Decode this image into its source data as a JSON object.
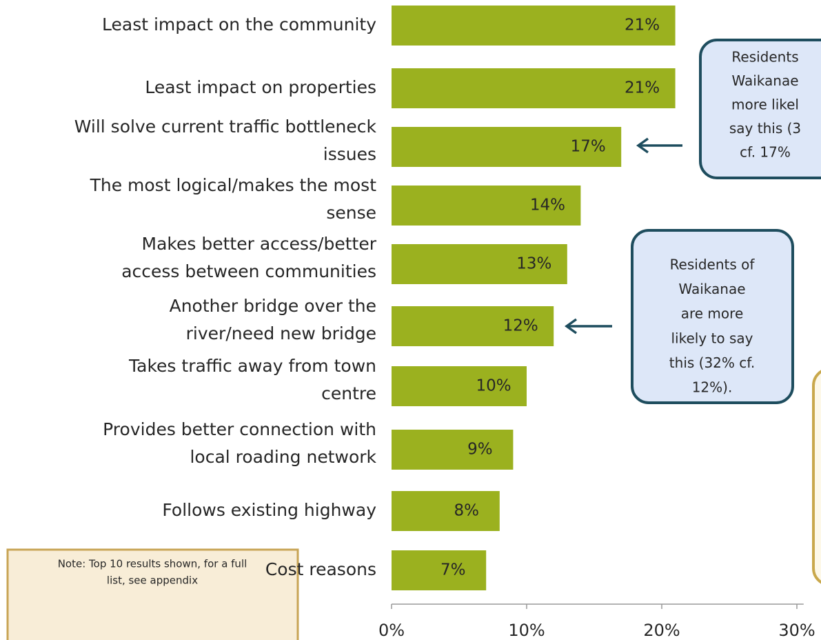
{
  "chart_data": {
    "type": "barh",
    "categories": [
      [
        "Least impact on the community"
      ],
      [
        "Least impact on properties"
      ],
      [
        "Will solve current traffic bottleneck",
        "issues"
      ],
      [
        "The most logical/makes the most",
        "sense"
      ],
      [
        "Makes better access/better",
        "access between communities"
      ],
      [
        "Another bridge over the",
        "river/need new bridge"
      ],
      [
        "Takes traffic away from town",
        "centre"
      ],
      [
        "Provides better connection with",
        "local roading network"
      ],
      [
        "Follows existing highway"
      ],
      [
        "Cost reasons"
      ]
    ],
    "values": [
      21,
      21,
      17,
      14,
      13,
      12,
      10,
      9,
      8,
      7
    ],
    "value_labels": [
      "21%",
      "21%",
      "17%",
      "14%",
      "13%",
      "12%",
      "10%",
      "9%",
      "8%",
      "7%"
    ],
    "color": "#9bb11f",
    "xlim": [
      0,
      30.5
    ],
    "xticks": [
      {
        "value": 0,
        "label": "0%"
      },
      {
        "value": 10,
        "label": "10%"
      },
      {
        "value": 20,
        "label": "20%"
      },
      {
        "value": 30,
        "label": "30%"
      }
    ],
    "annotations": [
      {
        "lines": [
          "Residents",
          "Waikanae",
          "more likel",
          "say this (3",
          "cf. 17%"
        ]
      },
      {
        "lines": [
          "Residents of",
          "Waikanae",
          "are more",
          "likely to say",
          "this (32% cf.",
          "12%)."
        ]
      }
    ],
    "note": [
      "Note: Top 10 results shown, for a full",
      "list, see appendix"
    ]
  }
}
